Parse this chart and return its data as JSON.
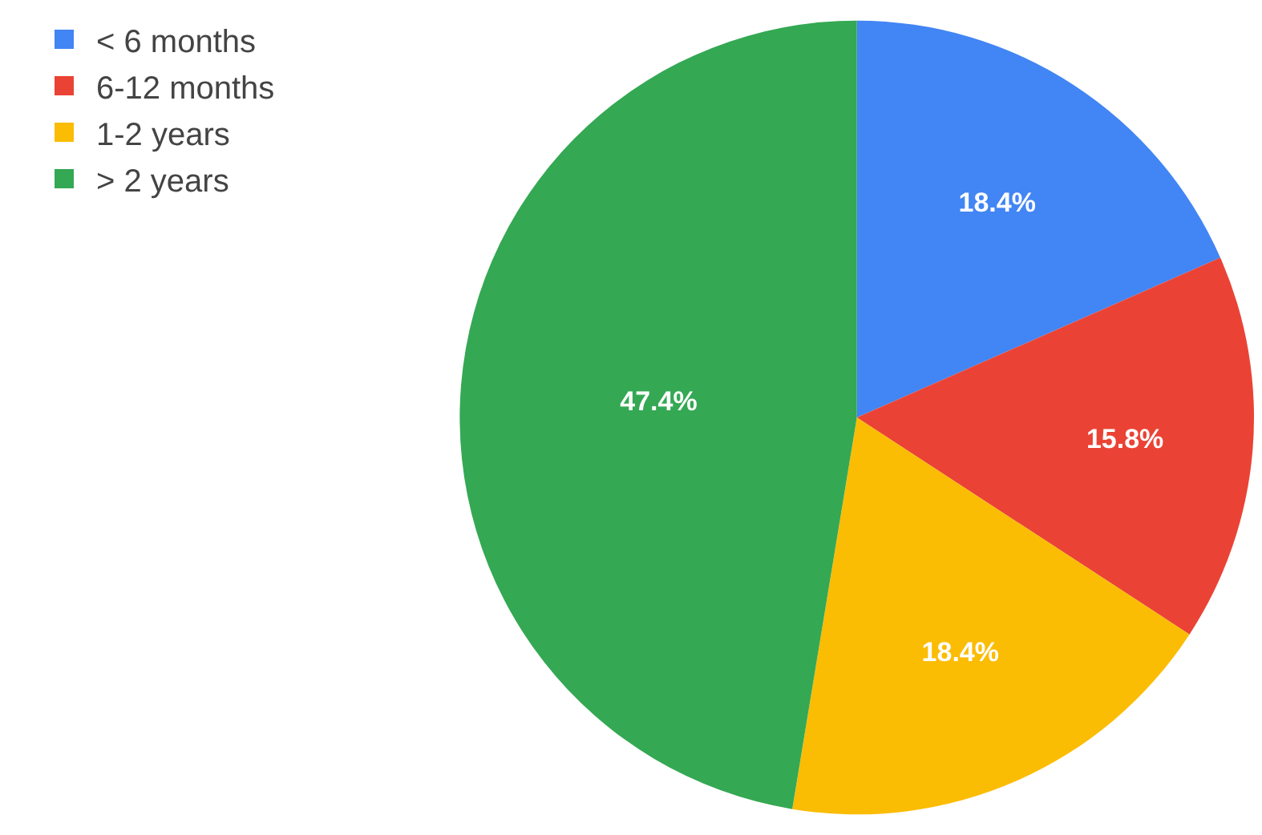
{
  "chart_data": {
    "type": "pie",
    "categories": [
      "< 6 months",
      "6-12 months",
      "1-2 years",
      "> 2 years"
    ],
    "values": [
      18.4,
      15.8,
      18.4,
      47.4
    ],
    "value_labels": [
      "18.4%",
      "15.8%",
      "18.4%",
      "47.4%"
    ],
    "colors": [
      "#4285f4",
      "#ea4335",
      "#fbbc04",
      "#34a853"
    ],
    "legend": "top left"
  }
}
